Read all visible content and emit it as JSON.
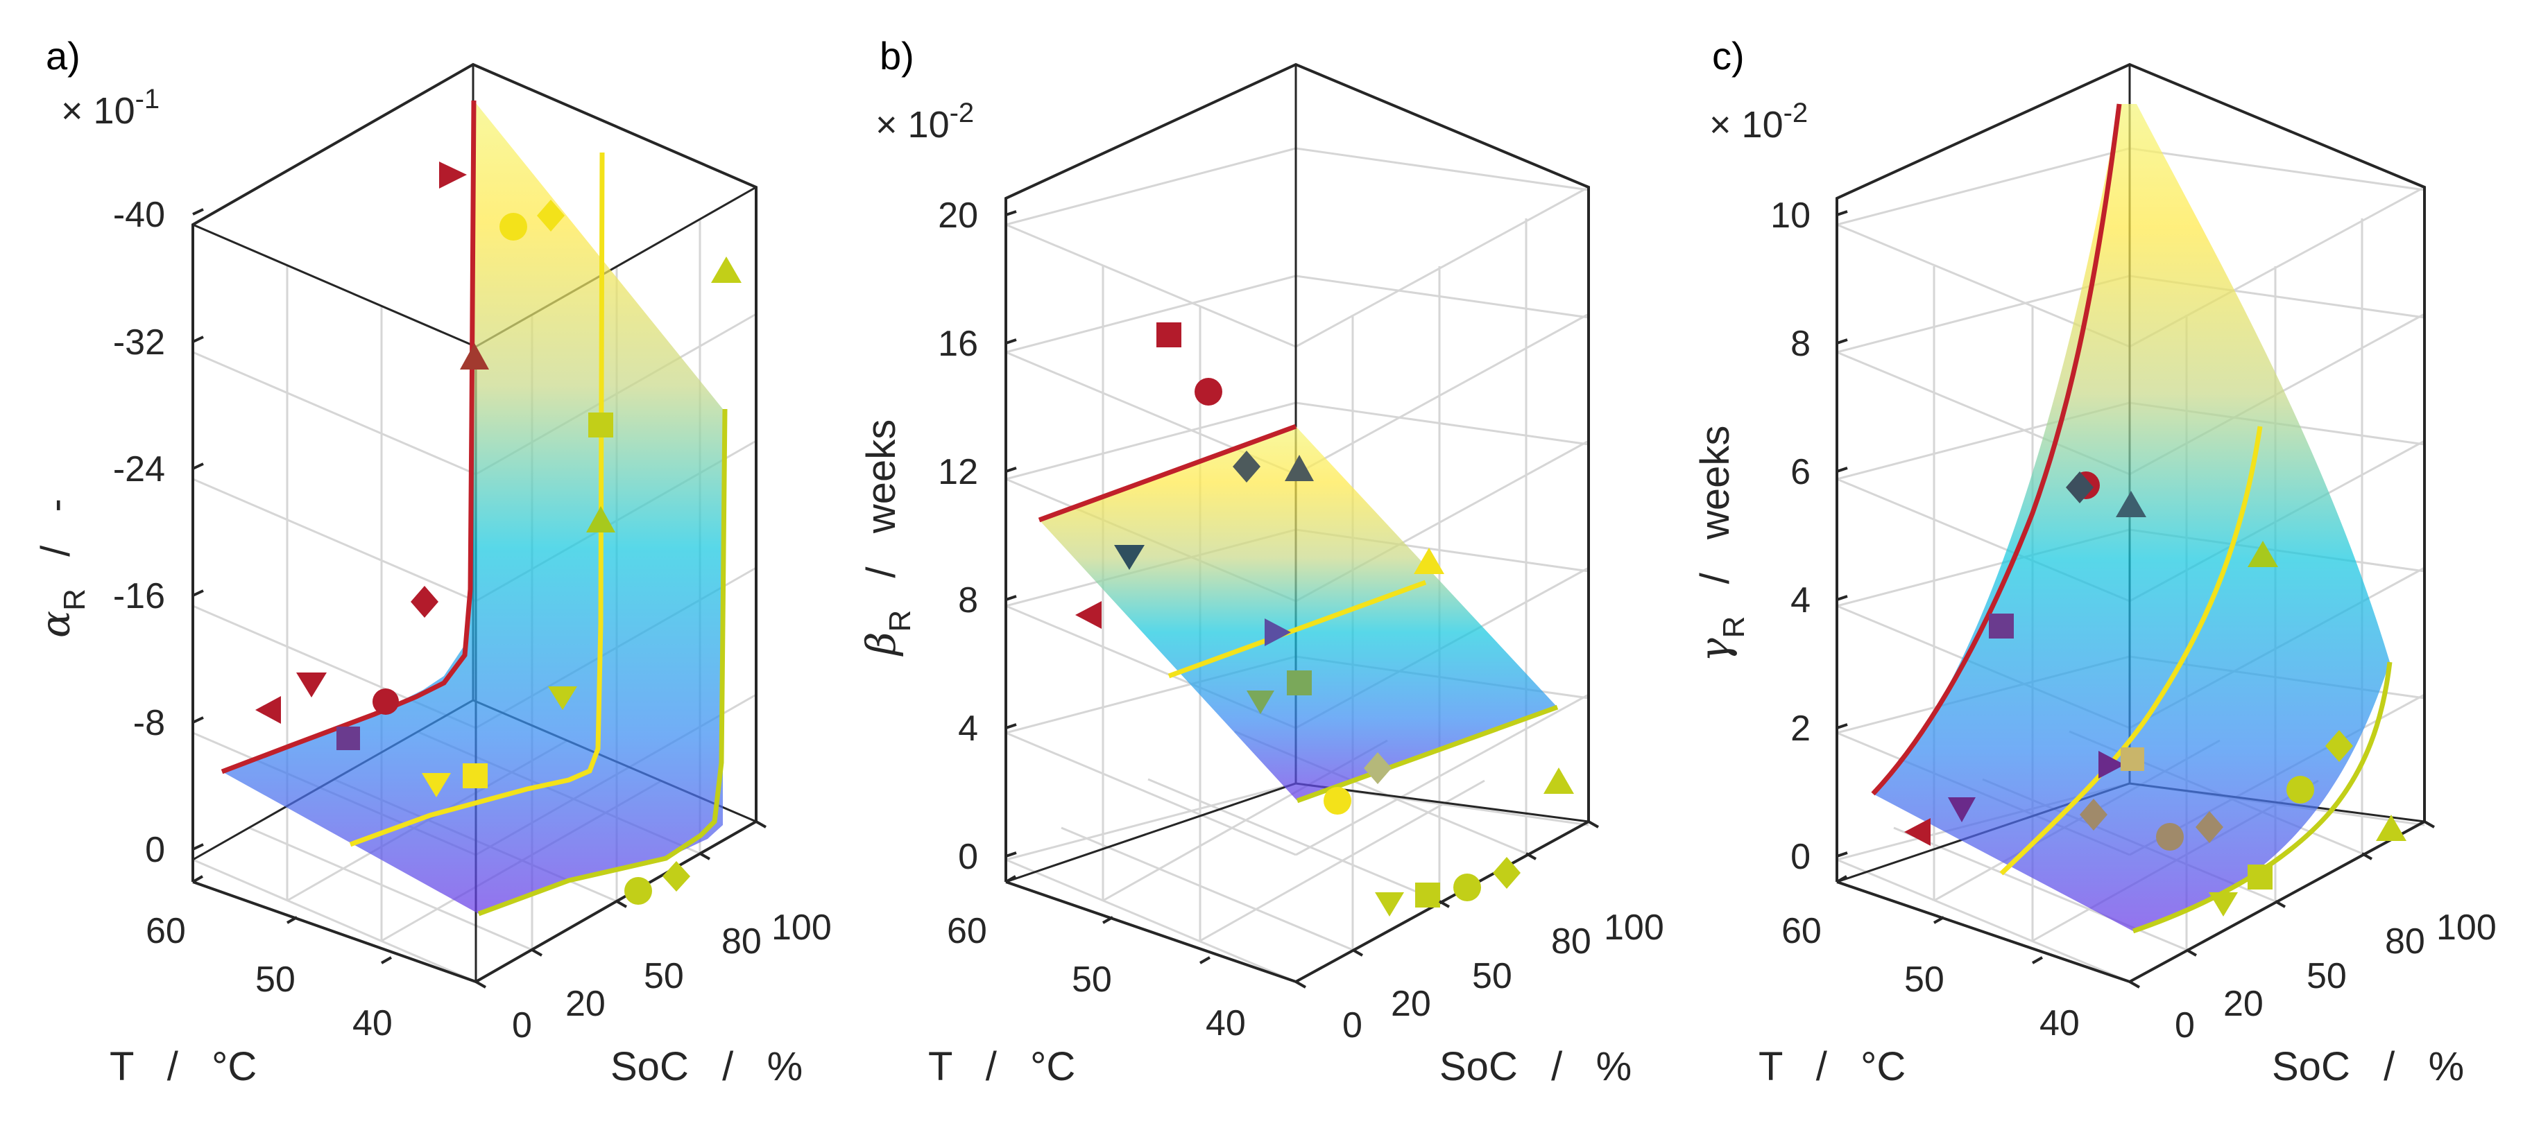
{
  "figure": {
    "panels": [
      "a",
      "b",
      "c"
    ]
  },
  "chart_data": [
    {
      "type": "3d-surface-scatter",
      "panel_label": "a)",
      "x_label": "T   /   °C",
      "y_label": "SoC   /   %",
      "z_symbol": "α",
      "z_subscript": "R",
      "z_unit": "/   -",
      "z_multiplier_base": "× 10",
      "z_multiplier_exp": "-1",
      "x_ticks": [
        "60",
        "50",
        "40"
      ],
      "y_ticks": [
        "0",
        "20",
        "50",
        "80",
        "100"
      ],
      "z_ticks": [
        "0",
        "-8",
        "-16",
        "-24",
        "-32",
        "-40"
      ],
      "xlim": [
        35,
        65
      ],
      "ylim": [
        0,
        100
      ],
      "zlim": [
        0,
        -40
      ],
      "surface_colormap": [
        "#6a3ce6",
        "#3b8df2",
        "#17c8e0",
        "#c9d98a",
        "#ffe94a",
        "#f5f57a"
      ],
      "lines": [
        {
          "name": "T=60",
          "color": "#c0202a",
          "points": [
            [
              60,
              0,
              -5
            ],
            [
              60,
              20,
              -6.5
            ],
            [
              60,
              50,
              -9.5
            ],
            [
              60,
              60,
              -12
            ],
            [
              60,
              70,
              -20
            ],
            [
              60,
              80,
              -47
            ]
          ]
        },
        {
          "name": "T=50",
          "color": "#f3e21a",
          "points": [
            [
              50,
              0,
              -1
            ],
            [
              50,
              20,
              -2.3
            ],
            [
              50,
              50,
              -3.8
            ],
            [
              50,
              65,
              -5
            ],
            [
              50,
              75,
              -9
            ],
            [
              50,
              80,
              -20
            ],
            [
              50,
              85,
              -40
            ]
          ]
        },
        {
          "name": "T=40",
          "color": "#c2cf18",
          "points": [
            [
              40,
              0,
              0
            ],
            [
              40,
              50,
              -0.8
            ],
            [
              40,
              75,
              -1.8
            ],
            [
              40,
              85,
              -3
            ],
            [
              40,
              90,
              -8
            ],
            [
              40,
              95,
              -29
            ]
          ]
        }
      ],
      "markers": [
        {
          "shape": "triangle-left",
          "color": "#b31b2b",
          "pos": [
            60,
            0,
            -9.4
          ]
        },
        {
          "shape": "triangle-down",
          "color": "#b31b2b",
          "pos": [
            60,
            20,
            -11
          ]
        },
        {
          "shape": "circle",
          "color": "#b31b2b",
          "pos": [
            60,
            50,
            -9.5
          ]
        },
        {
          "shape": "diamond",
          "color": "#b31b2b",
          "pos": [
            60,
            80,
            -16
          ]
        },
        {
          "shape": "triangle-right",
          "color": "#b31b2b",
          "pos": [
            60,
            100,
            -42
          ]
        },
        {
          "shape": "triangle-up",
          "color": "#a23a2f",
          "pos": [
            60,
            100,
            -31
          ]
        },
        {
          "shape": "square",
          "color": "#6a3b8e",
          "pos": [
            50,
            20,
            -7.5
          ]
        },
        {
          "shape": "triangle-down",
          "color": "#f3e21a",
          "pos": [
            50,
            50,
            -4.8
          ]
        },
        {
          "shape": "square",
          "color": "#f3e21a",
          "pos": [
            50,
            80,
            -5
          ]
        },
        {
          "shape": "circle",
          "color": "#f3e21a",
          "pos": [
            50,
            80,
            -39.5
          ]
        },
        {
          "shape": "diamond",
          "color": "#f3e21a",
          "pos": [
            50,
            100,
            -40
          ]
        },
        {
          "shape": "square",
          "color": "#c2cf18",
          "pos": [
            40,
            20,
            -26
          ]
        },
        {
          "shape": "triangle-up",
          "color": "#a7c91d",
          "pos": [
            40,
            20,
            -21
          ]
        },
        {
          "shape": "triangle-down",
          "color": "#c2cf18",
          "pos": [
            40,
            20,
            -10
          ]
        },
        {
          "shape": "circle",
          "color": "#c2cf18",
          "pos": [
            40,
            20,
            1.5
          ]
        },
        {
          "shape": "diamond",
          "color": "#c2cf18",
          "pos": [
            40,
            50,
            1
          ]
        },
        {
          "shape": "triangle-up",
          "color": "#c2cf18",
          "pos": [
            40,
            100,
            -37
          ]
        }
      ]
    },
    {
      "type": "3d-surface-scatter",
      "panel_label": "b)",
      "x_label": "T   /   °C",
      "y_label": "SoC   /   %",
      "z_symbol": "β",
      "z_subscript": "R",
      "z_unit": "/   weeks",
      "z_multiplier_base": "× 10",
      "z_multiplier_exp": "-2",
      "x_ticks": [
        "60",
        "50",
        "40"
      ],
      "y_ticks": [
        "0",
        "20",
        "50",
        "80",
        "100"
      ],
      "z_ticks": [
        "0",
        "4",
        "8",
        "12",
        "16",
        "20"
      ],
      "xlim": [
        35,
        65
      ],
      "ylim": [
        0,
        100
      ],
      "zlim": [
        0,
        20
      ],
      "surface_colormap": [
        "#6a3ce6",
        "#3b8df2",
        "#17c8e0",
        "#c9d98a",
        "#ffe94a",
        "#f5f57a"
      ],
      "lines": [
        {
          "name": "T=60",
          "color": "#c0202a",
          "points": [
            [
              60,
              0,
              10.5
            ],
            [
              60,
              100,
              13.5
            ]
          ]
        },
        {
          "name": "T=50",
          "color": "#f3e21a",
          "points": [
            [
              50,
              0,
              5.6
            ],
            [
              50,
              100,
              8.7
            ]
          ]
        },
        {
          "name": "T=40",
          "color": "#c2cf18",
          "points": [
            [
              40,
              0,
              1.5
            ],
            [
              40,
              100,
              4.6
            ]
          ]
        }
      ],
      "markers": [
        {
          "shape": "triangle-left",
          "color": "#b31b2b",
          "pos": [
            60,
            0,
            7.5
          ]
        },
        {
          "shape": "square",
          "color": "#b31b2b",
          "pos": [
            60,
            50,
            16.3
          ]
        },
        {
          "shape": "circle",
          "color": "#b31b2b",
          "pos": [
            60,
            80,
            14.5
          ]
        },
        {
          "shape": "triangle-down",
          "color": "#2f4f5f",
          "pos": [
            60,
            20,
            9.3
          ]
        },
        {
          "shape": "diamond",
          "color": "#4d5a5c",
          "pos": [
            60,
            50,
            12.2
          ]
        },
        {
          "shape": "triangle-up",
          "color": "#4d5a5c",
          "pos": [
            60,
            100,
            12.1
          ]
        },
        {
          "shape": "triangle-right",
          "color": "#5a4fa2",
          "pos": [
            50,
            50,
            7
          ]
        },
        {
          "shape": "triangle-down",
          "color": "#7aa85a",
          "pos": [
            50,
            20,
            4.8
          ]
        },
        {
          "shape": "square",
          "color": "#7aa85a",
          "pos": [
            50,
            50,
            5.5
          ]
        },
        {
          "shape": "triangle-up",
          "color": "#f3e21a",
          "pos": [
            50,
            100,
            9.2
          ]
        },
        {
          "shape": "diamond",
          "color": "#b5b87a",
          "pos": [
            40,
            20,
            2.7
          ]
        },
        {
          "shape": "circle",
          "color": "#f3e21a",
          "pos": [
            40,
            0,
            1.7
          ]
        },
        {
          "shape": "triangle-down",
          "color": "#c2cf18",
          "pos": [
            40,
            20,
            -1.5
          ]
        },
        {
          "shape": "square",
          "color": "#c2cf18",
          "pos": [
            40,
            50,
            -1.5
          ]
        },
        {
          "shape": "circle",
          "color": "#c2cf18",
          "pos": [
            40,
            80,
            -0.5
          ]
        },
        {
          "shape": "diamond",
          "color": "#c2cf18",
          "pos": [
            40,
            100,
            -0.5
          ]
        },
        {
          "shape": "triangle-up",
          "color": "#c2cf18",
          "pos": [
            40,
            100,
            2.3
          ]
        }
      ]
    },
    {
      "type": "3d-surface-scatter",
      "panel_label": "c)",
      "x_label": "T   /   °C",
      "y_label": "SoC   /   %",
      "z_symbol": "γ",
      "z_subscript": "R",
      "z_unit": "/   weeks",
      "z_multiplier_base": "× 10",
      "z_multiplier_exp": "-2",
      "x_ticks": [
        "60",
        "50",
        "40"
      ],
      "y_ticks": [
        "0",
        "20",
        "50",
        "80",
        "100"
      ],
      "z_ticks": [
        "0",
        "2",
        "4",
        "6",
        "8",
        "10"
      ],
      "xlim": [
        35,
        65
      ],
      "ylim": [
        0,
        100
      ],
      "zlim": [
        0,
        10
      ],
      "surface_colormap": [
        "#6a3ce6",
        "#3b8df2",
        "#17c8e0",
        "#c9d98a",
        "#ffe94a",
        "#f5f57a"
      ],
      "lines": [
        {
          "name": "T=60",
          "color": "#c0202a",
          "points": [
            [
              60,
              0,
              1
            ],
            [
              60,
              20,
              2
            ],
            [
              60,
              40,
              3.6
            ],
            [
              60,
              60,
              6
            ],
            [
              60,
              80,
              9.2
            ],
            [
              60,
              100,
              12
            ]
          ]
        },
        {
          "name": "T=50",
          "color": "#f3e21a",
          "points": [
            [
              50,
              0,
              0
            ],
            [
              50,
              30,
              0.8
            ],
            [
              50,
              60,
              2
            ],
            [
              50,
              80,
              3.8
            ],
            [
              50,
              100,
              6.7
            ]
          ]
        },
        {
          "name": "T=40",
          "color": "#c2cf18",
          "points": [
            [
              40,
              0,
              -1
            ],
            [
              40,
              50,
              -0.2
            ],
            [
              40,
              80,
              1.2
            ],
            [
              40,
              100,
              2.9
            ]
          ]
        }
      ],
      "markers": [
        {
          "shape": "triangle-left",
          "color": "#b31b2b",
          "pos": [
            60,
            0,
            0.3
          ]
        },
        {
          "shape": "triangle-down",
          "color": "#6a2a8a",
          "pos": [
            60,
            20,
            0.7
          ]
        },
        {
          "shape": "square",
          "color": "#6a3b8e",
          "pos": [
            60,
            50,
            3.5
          ]
        },
        {
          "shape": "circle",
          "color": "#b31b2b",
          "pos": [
            60,
            80,
            5.8
          ]
        },
        {
          "shape": "diamond",
          "color": "#3d4f5e",
          "pos": [
            60,
            80,
            5.8
          ]
        },
        {
          "shape": "triangle-up",
          "color": "#3d5f6e",
          "pos": [
            60,
            100,
            5.5
          ]
        },
        {
          "shape": "triangle-right",
          "color": "#6a2a8a",
          "pos": [
            50,
            20,
            1.4
          ]
        },
        {
          "shape": "square",
          "color": "#c9b56a",
          "pos": [
            50,
            50,
            1.5
          ]
        },
        {
          "shape": "diamond",
          "color": "#a08a6a",
          "pos": [
            50,
            20,
            0.5
          ]
        },
        {
          "shape": "circle",
          "color": "#a08a6a",
          "pos": [
            40,
            0,
            0.2
          ]
        },
        {
          "shape": "diamond",
          "color": "#a08a6a",
          "pos": [
            40,
            20,
            0.4
          ]
        },
        {
          "shape": "triangle-down",
          "color": "#c2cf18",
          "pos": [
            40,
            20,
            -0.8
          ]
        },
        {
          "shape": "square",
          "color": "#c2cf18",
          "pos": [
            40,
            50,
            -0.4
          ]
        },
        {
          "shape": "circle",
          "color": "#c2cf18",
          "pos": [
            40,
            80,
            1
          ]
        },
        {
          "shape": "diamond",
          "color": "#c2cf18",
          "pos": [
            40,
            100,
            1.7
          ]
        },
        {
          "shape": "triangle-up",
          "color": "#a7c91d",
          "pos": [
            40,
            100,
            4.7
          ]
        },
        {
          "shape": "triangle-up",
          "color": "#c2cf18",
          "pos": [
            40,
            100,
            0.4
          ]
        }
      ]
    }
  ]
}
